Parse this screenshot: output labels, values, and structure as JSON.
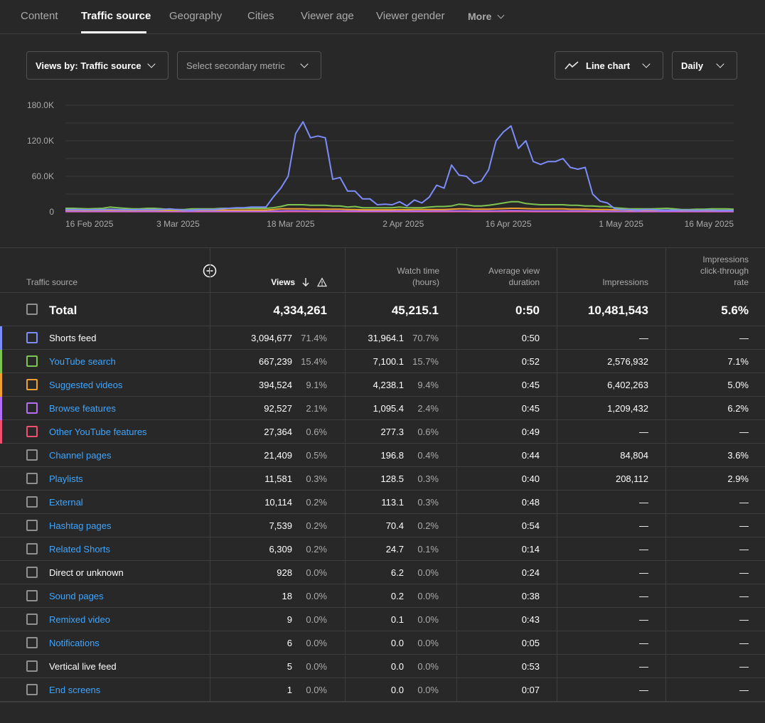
{
  "tabs": [
    "Content",
    "Traffic source",
    "Geography",
    "Cities",
    "Viewer age",
    "Viewer gender",
    "More"
  ],
  "controls": {
    "primary_metric": "Views by: Traffic source",
    "secondary_metric": "Select secondary metric",
    "chart_type": "Line chart",
    "granularity": "Daily"
  },
  "chart_data": {
    "type": "line",
    "y_ticks": [
      "180.0K",
      "120.0K",
      "60.0K",
      "0"
    ],
    "ylim": [
      0,
      180000
    ],
    "x_ticks": [
      "16 Feb 2025",
      "3 Mar 2025",
      "18 Mar 2025",
      "2 Apr 2025",
      "16 Apr 2025",
      "1 May 2025",
      "16 May 2025"
    ],
    "x_range": [
      "2025-02-16",
      "2025-05-16"
    ],
    "grid": true,
    "series": [
      {
        "color": "#7c8cf8",
        "values": [
          4000,
          4000,
          4000,
          3500,
          4000,
          4000,
          4500,
          4000,
          4000,
          3500,
          4000,
          4000,
          4000,
          4000,
          5000,
          4000,
          3000,
          3000,
          4000,
          4000,
          4000,
          5000,
          6000,
          7000,
          7000,
          8000,
          8000,
          8000,
          25000,
          40000,
          60000,
          132000,
          152000,
          125000,
          128000,
          125000,
          55000,
          58000,
          35000,
          35000,
          22000,
          22000,
          12000,
          13000,
          12000,
          17000,
          10000,
          20000,
          15000,
          25000,
          45000,
          40000,
          79000,
          62000,
          60000,
          48000,
          52000,
          71000,
          120000,
          135000,
          145000,
          107000,
          120000,
          85000,
          80000,
          85000,
          85000,
          90000,
          75000,
          72000,
          75000,
          30000,
          18000,
          15000,
          5000,
          4000,
          4000,
          3000,
          4000,
          4000,
          3000,
          3000,
          3000,
          3000,
          3000,
          2500,
          3000,
          3000,
          2500,
          2500,
          2500
        ]
      },
      {
        "color": "#7ec451",
        "values": [
          6000,
          6000,
          5500,
          5000,
          5500,
          6000,
          8000,
          7000,
          6000,
          5000,
          5000,
          6000,
          6000,
          5000,
          4000,
          4000,
          4000,
          5000,
          5000,
          5000,
          5000,
          6000,
          6000,
          6000,
          6000,
          6000,
          6000,
          6000,
          7000,
          9000,
          12000,
          12000,
          12000,
          11000,
          11000,
          11000,
          10000,
          10000,
          8000,
          9000,
          7000,
          7000,
          7000,
          7000,
          7000,
          8000,
          7000,
          7000,
          7000,
          8000,
          9000,
          9000,
          10000,
          13000,
          12000,
          10000,
          10000,
          11000,
          13000,
          15000,
          17000,
          17000,
          14000,
          13000,
          12000,
          12000,
          12000,
          12000,
          11000,
          11000,
          10000,
          10000,
          9000,
          9000,
          7000,
          6000,
          5000,
          5000,
          5000,
          5000,
          5500,
          6000,
          5000,
          4000,
          4000,
          4500,
          4500,
          5000,
          5000,
          5000,
          4500
        ]
      },
      {
        "color": "#f0a030",
        "values": [
          3000,
          3000,
          3000,
          2500,
          3000,
          3000,
          3000,
          3000,
          3000,
          2500,
          3000,
          3000,
          3000,
          2500,
          2500,
          2500,
          2500,
          3000,
          3000,
          3000,
          3000,
          3000,
          3000,
          3000,
          3000,
          3000,
          3000,
          3000,
          4000,
          5000,
          5000,
          5000,
          5000,
          4500,
          4500,
          4500,
          4500,
          4500,
          4000,
          4000,
          3500,
          3500,
          3500,
          3500,
          3500,
          4000,
          3500,
          4000,
          4000,
          4000,
          4000,
          4000,
          4500,
          5000,
          5000,
          4500,
          4500,
          4500,
          5000,
          5500,
          6000,
          6000,
          5500,
          5000,
          5000,
          5000,
          5000,
          5000,
          4500,
          4500,
          4500,
          4000,
          4000,
          4000,
          3500,
          3500,
          3000,
          3000,
          3000,
          3000,
          3000,
          3000,
          3000,
          2500,
          2500,
          2500,
          2500,
          2500,
          2500,
          2500,
          2500
        ]
      },
      {
        "color": "#b36ef5",
        "values": [
          1000,
          1000,
          1000,
          900,
          1000,
          1000,
          1000,
          1000,
          1000,
          900,
          1000,
          1000,
          1000,
          900,
          900,
          900,
          900,
          1000,
          1000,
          1000,
          1000,
          1000,
          1000,
          1000,
          1000,
          1000,
          1000,
          1000,
          1200,
          1500,
          1800,
          1800,
          1700,
          1600,
          1600,
          1500,
          1400,
          1400,
          1300,
          1300,
          1200,
          1200,
          1200,
          1200,
          1200,
          1200,
          1100,
          1200,
          1200,
          1300,
          1400,
          1400,
          1500,
          1600,
          1600,
          1500,
          1500,
          1500,
          1600,
          1800,
          1900,
          1900,
          1700,
          1600,
          1500,
          1500,
          1500,
          1500,
          1400,
          1400,
          1400,
          1200,
          1200,
          1100,
          1000,
          1000,
          900,
          900,
          900,
          900,
          900,
          900,
          900,
          800,
          800,
          800,
          800,
          800,
          800,
          800,
          800
        ]
      },
      {
        "color": "#f0506e",
        "values": [
          300,
          300,
          300,
          300,
          300,
          300,
          300,
          300,
          300,
          300,
          300,
          300,
          300,
          300,
          300,
          300,
          300,
          300,
          300,
          300,
          300,
          300,
          300,
          300,
          300,
          300,
          300,
          300,
          350,
          400,
          500,
          500,
          450,
          450,
          450,
          400,
          400,
          400,
          350,
          350,
          300,
          300,
          300,
          300,
          300,
          300,
          300,
          300,
          300,
          350,
          400,
          400,
          400,
          450,
          450,
          400,
          400,
          400,
          450,
          500,
          500,
          500,
          450,
          400,
          400,
          400,
          400,
          400,
          400,
          400,
          400,
          350,
          350,
          300,
          300,
          300,
          250,
          250,
          250,
          250,
          250,
          250,
          250,
          250,
          250,
          250,
          250,
          250,
          250,
          250,
          250
        ]
      }
    ]
  },
  "table": {
    "headers": {
      "source": "Traffic source",
      "views": "Views",
      "watch_time_1": "Watch time",
      "watch_time_2": "(hours)",
      "avd_1": "Average view",
      "avd_2": "duration",
      "impressions": "Impressions",
      "ctr_1": "Impressions",
      "ctr_2": "click-through",
      "ctr_3": "rate"
    },
    "total": {
      "label": "Total",
      "views": "4,334,261",
      "watch": "45,215.1",
      "avd": "0:50",
      "impressions": "10,481,543",
      "ctr": "5.6%"
    },
    "rows": [
      {
        "name": "Shorts feed",
        "link": false,
        "color": "#7c8cf8",
        "views": "3,094,677",
        "views_pct": "71.4%",
        "watch": "31,964.1",
        "watch_pct": "70.7%",
        "avd": "0:50",
        "impressions": "—",
        "ctr": "—"
      },
      {
        "name": "YouTube search",
        "link": true,
        "color": "#7ec451",
        "views": "667,239",
        "views_pct": "15.4%",
        "watch": "7,100.1",
        "watch_pct": "15.7%",
        "avd": "0:52",
        "impressions": "2,576,932",
        "ctr": "7.1%"
      },
      {
        "name": "Suggested videos",
        "link": true,
        "color": "#f0a030",
        "views": "394,524",
        "views_pct": "9.1%",
        "watch": "4,238.1",
        "watch_pct": "9.4%",
        "avd": "0:45",
        "impressions": "6,402,263",
        "ctr": "5.0%"
      },
      {
        "name": "Browse features",
        "link": true,
        "color": "#b36ef5",
        "views": "92,527",
        "views_pct": "2.1%",
        "watch": "1,095.4",
        "watch_pct": "2.4%",
        "avd": "0:45",
        "impressions": "1,209,432",
        "ctr": "6.2%"
      },
      {
        "name": "Other YouTube features",
        "link": true,
        "color": "#f0506e",
        "views": "27,364",
        "views_pct": "0.6%",
        "watch": "277.3",
        "watch_pct": "0.6%",
        "avd": "0:49",
        "impressions": "—",
        "ctr": "—"
      },
      {
        "name": "Channel pages",
        "link": true,
        "color": "",
        "views": "21,409",
        "views_pct": "0.5%",
        "watch": "196.8",
        "watch_pct": "0.4%",
        "avd": "0:44",
        "impressions": "84,804",
        "ctr": "3.6%"
      },
      {
        "name": "Playlists",
        "link": true,
        "color": "",
        "views": "11,581",
        "views_pct": "0.3%",
        "watch": "128.5",
        "watch_pct": "0.3%",
        "avd": "0:40",
        "impressions": "208,112",
        "ctr": "2.9%"
      },
      {
        "name": "External",
        "link": true,
        "color": "",
        "views": "10,114",
        "views_pct": "0.2%",
        "watch": "113.1",
        "watch_pct": "0.3%",
        "avd": "0:48",
        "impressions": "—",
        "ctr": "—"
      },
      {
        "name": "Hashtag pages",
        "link": true,
        "color": "",
        "views": "7,539",
        "views_pct": "0.2%",
        "watch": "70.4",
        "watch_pct": "0.2%",
        "avd": "0:54",
        "impressions": "—",
        "ctr": "—"
      },
      {
        "name": "Related Shorts",
        "link": true,
        "color": "",
        "views": "6,309",
        "views_pct": "0.2%",
        "watch": "24.7",
        "watch_pct": "0.1%",
        "avd": "0:14",
        "impressions": "—",
        "ctr": "—"
      },
      {
        "name": "Direct or unknown",
        "link": false,
        "color": "",
        "views": "928",
        "views_pct": "0.0%",
        "watch": "6.2",
        "watch_pct": "0.0%",
        "avd": "0:24",
        "impressions": "—",
        "ctr": "—"
      },
      {
        "name": "Sound pages",
        "link": true,
        "color": "",
        "views": "18",
        "views_pct": "0.0%",
        "watch": "0.2",
        "watch_pct": "0.0%",
        "avd": "0:38",
        "impressions": "—",
        "ctr": "—"
      },
      {
        "name": "Remixed video",
        "link": true,
        "color": "",
        "views": "9",
        "views_pct": "0.0%",
        "watch": "0.1",
        "watch_pct": "0.0%",
        "avd": "0:43",
        "impressions": "—",
        "ctr": "—"
      },
      {
        "name": "Notifications",
        "link": true,
        "color": "",
        "views": "6",
        "views_pct": "0.0%",
        "watch": "0.0",
        "watch_pct": "0.0%",
        "avd": "0:05",
        "impressions": "—",
        "ctr": "—"
      },
      {
        "name": "Vertical live feed",
        "link": false,
        "color": "",
        "views": "5",
        "views_pct": "0.0%",
        "watch": "0.0",
        "watch_pct": "0.0%",
        "avd": "0:53",
        "impressions": "—",
        "ctr": "—"
      },
      {
        "name": "End screens",
        "link": true,
        "color": "",
        "views": "1",
        "views_pct": "0.0%",
        "watch": "0.0",
        "watch_pct": "0.0%",
        "avd": "0:07",
        "impressions": "—",
        "ctr": "—"
      }
    ]
  }
}
